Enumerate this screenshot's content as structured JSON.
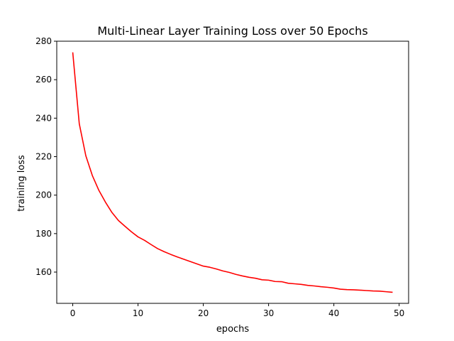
{
  "chart_data": {
    "type": "line",
    "title": "Multi-Linear Layer Training Loss over 50 Epochs",
    "xlabel": "epochs",
    "ylabel": "training loss",
    "xlim": [
      -2.45,
      51.45
    ],
    "ylim": [
      143.75,
      280
    ],
    "xticks": [
      0,
      10,
      20,
      30,
      40,
      50
    ],
    "yticks": [
      160,
      180,
      200,
      220,
      240,
      260,
      280
    ],
    "grid": false,
    "series": [
      {
        "color": "#ff0000",
        "x": [
          0,
          1,
          2,
          3,
          4,
          5,
          6,
          7,
          8,
          9,
          10,
          11,
          12,
          13,
          14,
          15,
          16,
          17,
          18,
          19,
          20,
          21,
          22,
          23,
          24,
          25,
          26,
          27,
          28,
          29,
          30,
          31,
          32,
          33,
          34,
          35,
          36,
          37,
          38,
          39,
          40,
          41,
          42,
          43,
          44,
          45,
          46,
          47,
          48,
          49
        ],
        "y": [
          274.2,
          237.1,
          220.5,
          210.2,
          202.5,
          196.4,
          191.0,
          186.8,
          183.8,
          180.9,
          178.3,
          176.5,
          174.3,
          172.2,
          170.6,
          169.2,
          167.9,
          166.7,
          165.5,
          164.3,
          163.1,
          162.5,
          161.6,
          160.6,
          159.8,
          158.8,
          158.0,
          157.3,
          156.8,
          156.0,
          155.8,
          155.1,
          155.0,
          154.2,
          153.9,
          153.6,
          153.1,
          152.8,
          152.4,
          152.1,
          151.7,
          151.1,
          150.9,
          150.8,
          150.6,
          150.4,
          150.2,
          150.1,
          149.8,
          149.5
        ]
      }
    ]
  }
}
